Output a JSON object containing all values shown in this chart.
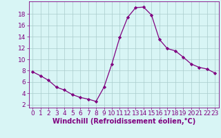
{
  "x": [
    0,
    1,
    2,
    3,
    4,
    5,
    6,
    7,
    8,
    9,
    10,
    11,
    12,
    13,
    14,
    15,
    16,
    17,
    18,
    19,
    20,
    21,
    22,
    23
  ],
  "y": [
    7.8,
    7.1,
    6.3,
    5.1,
    4.6,
    3.8,
    3.3,
    3.0,
    2.6,
    5.1,
    9.2,
    13.9,
    17.4,
    19.1,
    19.2,
    17.8,
    13.5,
    11.9,
    11.5,
    10.4,
    9.2,
    8.6,
    8.3,
    7.6
  ],
  "xlabel": "Windchill (Refroidissement éolien,°C)",
  "xlim": [
    -0.5,
    23.5
  ],
  "ylim": [
    1.5,
    20.2
  ],
  "yticks": [
    2,
    4,
    6,
    8,
    10,
    12,
    14,
    16,
    18
  ],
  "xticks": [
    0,
    1,
    2,
    3,
    4,
    5,
    6,
    7,
    8,
    9,
    10,
    11,
    12,
    13,
    14,
    15,
    16,
    17,
    18,
    19,
    20,
    21,
    22,
    23
  ],
  "line_color": "#800080",
  "marker": "D",
  "marker_size": 2.2,
  "bg_color": "#d8f5f5",
  "grid_color": "#aacccc",
  "xlabel_fontsize": 7,
  "tick_fontsize": 6.5
}
